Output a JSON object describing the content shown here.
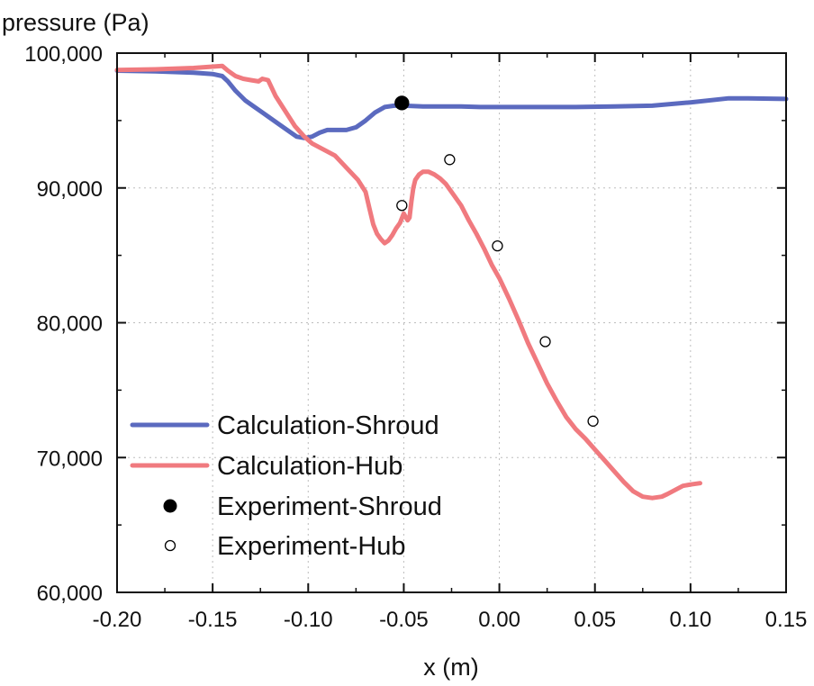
{
  "chart_data": {
    "type": "line",
    "title": "",
    "xlabel": "x (m)",
    "ylabel": "pressure (Pa)",
    "xlim": [
      -0.2,
      0.15
    ],
    "ylim": [
      60000,
      100000
    ],
    "grid": true,
    "legend_position": "bottom-left",
    "x_ticks": [
      -0.2,
      -0.15,
      -0.1,
      -0.05,
      0.0,
      0.05,
      0.1,
      0.15
    ],
    "x_tick_labels": [
      "-0.20",
      "-0.15",
      "-0.10",
      "-0.05",
      "0.00",
      "0.05",
      "0.10",
      "0.15"
    ],
    "y_ticks": [
      60000,
      70000,
      80000,
      90000,
      100000
    ],
    "y_tick_labels": [
      "60,000",
      "70,000",
      "80,000",
      "90,000",
      "100,000"
    ],
    "series": [
      {
        "name": "Calculation-Shroud",
        "kind": "line",
        "color": "#5b6abf",
        "x": [
          -0.2,
          -0.18,
          -0.16,
          -0.15,
          -0.145,
          -0.142,
          -0.138,
          -0.133,
          -0.128,
          -0.122,
          -0.116,
          -0.11,
          -0.106,
          -0.102,
          -0.098,
          -0.094,
          -0.09,
          -0.085,
          -0.08,
          -0.075,
          -0.07,
          -0.065,
          -0.06,
          -0.055,
          -0.05,
          -0.04,
          -0.03,
          -0.02,
          -0.01,
          0.0,
          0.02,
          0.04,
          0.06,
          0.08,
          0.1,
          0.12,
          0.13,
          0.15
        ],
        "y": [
          98700,
          98650,
          98550,
          98450,
          98300,
          97900,
          97200,
          96500,
          96000,
          95400,
          94800,
          94200,
          93800,
          93700,
          93800,
          94100,
          94300,
          94300,
          94300,
          94500,
          95000,
          95600,
          96000,
          96100,
          96100,
          96050,
          96050,
          96050,
          96000,
          96000,
          96000,
          96000,
          96050,
          96100,
          96350,
          96650,
          96650,
          96600
        ]
      },
      {
        "name": "Calculation-Hub",
        "kind": "line",
        "color": "#f07a7f",
        "x": [
          -0.2,
          -0.18,
          -0.16,
          -0.15,
          -0.145,
          -0.142,
          -0.138,
          -0.134,
          -0.13,
          -0.126,
          -0.124,
          -0.121,
          -0.117,
          -0.112,
          -0.107,
          -0.102,
          -0.098,
          -0.094,
          -0.09,
          -0.086,
          -0.082,
          -0.078,
          -0.074,
          -0.07,
          -0.068,
          -0.066,
          -0.064,
          -0.062,
          -0.06,
          -0.058,
          -0.056,
          -0.054,
          -0.052,
          -0.05,
          -0.048,
          -0.047,
          -0.046,
          -0.045,
          -0.044,
          -0.042,
          -0.04,
          -0.037,
          -0.034,
          -0.031,
          -0.028,
          -0.024,
          -0.02,
          -0.016,
          -0.012,
          -0.008,
          -0.004,
          0.0,
          0.005,
          0.01,
          0.015,
          0.02,
          0.025,
          0.03,
          0.035,
          0.04,
          0.045,
          0.05,
          0.055,
          0.06,
          0.065,
          0.07,
          0.075,
          0.08,
          0.085,
          0.088,
          0.092,
          0.096,
          0.1,
          0.105
        ],
        "y": [
          98750,
          98800,
          98900,
          99000,
          99050,
          98700,
          98300,
          98100,
          98000,
          97900,
          98100,
          98000,
          96800,
          95700,
          94600,
          93800,
          93300,
          93000,
          92700,
          92400,
          91800,
          91200,
          90600,
          89700,
          88500,
          87300,
          86600,
          86200,
          85900,
          86100,
          86500,
          87000,
          87400,
          88100,
          87600,
          87800,
          89000,
          90000,
          90600,
          91000,
          91200,
          91200,
          91000,
          90700,
          90300,
          89500,
          88700,
          87600,
          86600,
          85500,
          84300,
          83300,
          81800,
          80200,
          78500,
          77000,
          75500,
          74200,
          73000,
          72100,
          71400,
          70600,
          69800,
          69000,
          68200,
          67500,
          67100,
          67000,
          67100,
          67300,
          67600,
          67900,
          68000,
          68100
        ]
      },
      {
        "name": "Experiment-Shroud",
        "kind": "scatter",
        "marker": "filled-circle",
        "color": "#000000",
        "x": [
          -0.051
        ],
        "y": [
          96300
        ]
      },
      {
        "name": "Experiment-Hub",
        "kind": "scatter",
        "marker": "open-circle",
        "color": "#000000",
        "x": [
          -0.051,
          -0.026,
          -0.001,
          0.024,
          0.049
        ],
        "y": [
          88700,
          92100,
          85700,
          78600,
          72700
        ]
      }
    ],
    "legend": [
      {
        "label": "Calculation-Shroud",
        "symbol": "line",
        "color": "#5b6abf"
      },
      {
        "label": "Calculation-Hub",
        "symbol": "line",
        "color": "#f07a7f"
      },
      {
        "label": "Experiment-Shroud",
        "symbol": "filled-circle",
        "color": "#000000"
      },
      {
        "label": "Experiment-Hub",
        "symbol": "open-circle",
        "color": "#000000"
      }
    ]
  }
}
